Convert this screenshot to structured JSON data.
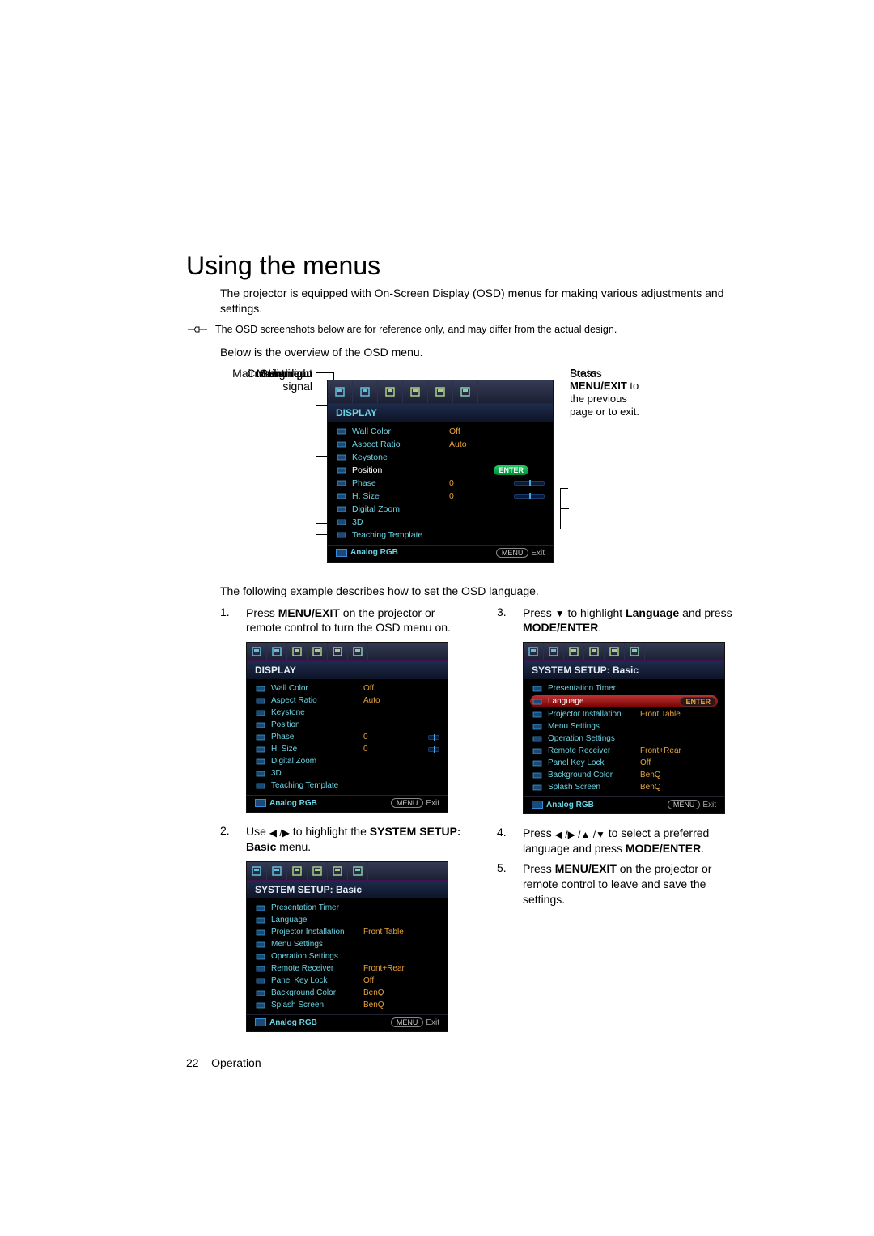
{
  "page": {
    "title": "Using the menus",
    "intro": "The projector is equipped with On-Screen Display (OSD) menus for making various adjustments and settings.",
    "disclaimer": "The OSD screenshots below are for reference only, and may differ from the actual design.",
    "below": "Below is the overview of the OSD menu.",
    "example_intro": "The following example describes how to set the OSD language.",
    "page_number": "22",
    "section": "Operation"
  },
  "labels": {
    "main_menu_icon": "Main menu icon",
    "main_menu": "Main menu",
    "sub_menu": "Sub-menu",
    "highlight": "Highlight",
    "current_input": "Current input signal",
    "status": "Status",
    "press_menu_exit": "Press MENU/EXIT to the previous page or to exit."
  },
  "osd_overview": {
    "title": "DISPLAY",
    "rows": [
      {
        "label": "Wall Color",
        "value": "Off"
      },
      {
        "label": "Aspect Ratio",
        "value": "Auto"
      },
      {
        "label": "Keystone",
        "value": ""
      },
      {
        "label": "Position",
        "value": "",
        "highlight": true,
        "enter": true
      },
      {
        "label": "Phase",
        "value": "0",
        "slider": true
      },
      {
        "label": "H. Size",
        "value": "0",
        "slider": true
      },
      {
        "label": "Digital Zoom",
        "value": ""
      },
      {
        "label": "3D",
        "value": ""
      },
      {
        "label": "Teaching Template",
        "value": ""
      }
    ],
    "footer_src": "Analog RGB",
    "footer_menu": "MENU",
    "footer_exit": "Exit"
  },
  "steps": {
    "s1": {
      "num": "1.",
      "text_a": "Press ",
      "bold_a": "MENU/EXIT",
      "text_b": " on the projector or remote control to turn the OSD menu on."
    },
    "s2": {
      "num": "2.",
      "text_a": "Use ",
      "text_b": " to highlight the ",
      "bold_a": "SYSTEM SETUP: Basic",
      "text_c": " menu."
    },
    "s3": {
      "num": "3.",
      "text_a": "Press ",
      "text_b": " to highlight ",
      "bold_a": "Language",
      "text_c": " and press ",
      "bold_b": "MODE/ENTER",
      "text_d": "."
    },
    "s4": {
      "num": "4.",
      "text_a": "Press ",
      "text_b": " to select a preferred language and press ",
      "bold_a": "MODE/ENTER",
      "text_c": "."
    },
    "s5": {
      "num": "5.",
      "text_a": "Press ",
      "bold_a": "MENU/EXIT",
      "text_b": " on the projector or remote control to leave and save the settings."
    }
  },
  "osd_display_small": {
    "title": "DISPLAY",
    "rows": [
      {
        "label": "Wall Color",
        "value": "Off"
      },
      {
        "label": "Aspect Ratio",
        "value": "Auto"
      },
      {
        "label": "Keystone",
        "value": ""
      },
      {
        "label": "Position",
        "value": ""
      },
      {
        "label": "Phase",
        "value": "0",
        "slider": true
      },
      {
        "label": "H. Size",
        "value": "0",
        "slider": true
      },
      {
        "label": "Digital Zoom",
        "value": ""
      },
      {
        "label": "3D",
        "value": ""
      },
      {
        "label": "Teaching Template",
        "value": ""
      }
    ],
    "footer_src": "Analog RGB",
    "footer_menu": "MENU",
    "footer_exit": "Exit"
  },
  "osd_setup_a": {
    "title": "SYSTEM SETUP: Basic",
    "rows": [
      {
        "label": "Presentation Timer",
        "value": ""
      },
      {
        "label": "Language",
        "value": ""
      },
      {
        "label": "Projector Installation",
        "value": "Front Table",
        "orange": true
      },
      {
        "label": "Menu Settings",
        "value": ""
      },
      {
        "label": "Operation Settings",
        "value": ""
      },
      {
        "label": "Remote Receiver",
        "value": "Front+Rear",
        "orange": true
      },
      {
        "label": "Panel Key Lock",
        "value": "Off",
        "orange": true
      },
      {
        "label": "Background Color",
        "value": "BenQ",
        "orange": true
      },
      {
        "label": "Splash Screen",
        "value": "BenQ",
        "orange": true
      }
    ],
    "footer_src": "Analog RGB",
    "footer_menu": "MENU",
    "footer_exit": "Exit"
  },
  "osd_setup_b": {
    "title": "SYSTEM SETUP: Basic",
    "rows": [
      {
        "label": "Presentation Timer",
        "value": ""
      },
      {
        "label": "Language",
        "value": "ENTER",
        "highlight": true
      },
      {
        "label": "Projector Installation",
        "value": "Front Table",
        "orange": true
      },
      {
        "label": "Menu Settings",
        "value": ""
      },
      {
        "label": "Operation Settings",
        "value": ""
      },
      {
        "label": "Remote Receiver",
        "value": "Front+Rear",
        "orange": true
      },
      {
        "label": "Panel Key Lock",
        "value": "Off",
        "orange": true
      },
      {
        "label": "Background Color",
        "value": "BenQ",
        "orange": true
      },
      {
        "label": "Splash Screen",
        "value": "BenQ",
        "orange": true
      }
    ],
    "footer_src": "Analog RGB",
    "footer_menu": "MENU",
    "footer_exit": "Exit"
  },
  "colors": {
    "osd_bg": "#000",
    "osd_header": "#1d2b4a",
    "cyan": "#6bd3e3",
    "orange": "#e6a23c",
    "highlight_bar": "#b33",
    "enter_btn": "#2c6"
  }
}
